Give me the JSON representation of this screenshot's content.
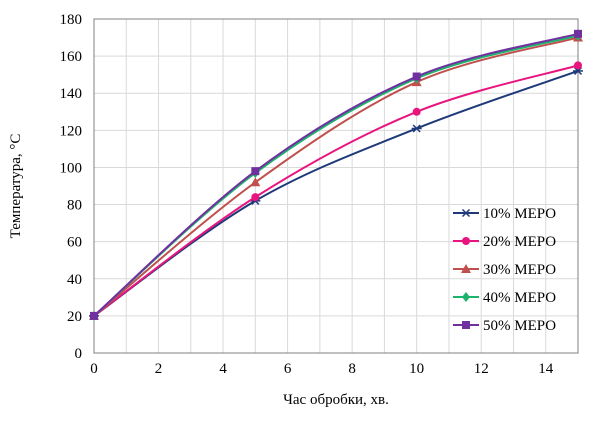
{
  "chart_data": {
    "type": "line",
    "title": "",
    "xlabel": "Час обробки, хв.",
    "ylabel": "Температура, °С",
    "x": [
      0,
      5,
      10,
      15
    ],
    "xlim": [
      0,
      15
    ],
    "ylim": [
      0,
      180
    ],
    "xticks": [
      0,
      2,
      4,
      6,
      8,
      10,
      12,
      14
    ],
    "yticks": [
      0,
      20,
      40,
      60,
      80,
      100,
      120,
      140,
      160,
      180
    ],
    "grid": true,
    "legend_position": "right",
    "series": [
      {
        "name": "10% МЕРО",
        "values": [
          20,
          82,
          121,
          152
        ],
        "color": "#1f3a7a",
        "marker": "star"
      },
      {
        "name": "20% МЕРО",
        "values": [
          20,
          84,
          130,
          155
        ],
        "color": "#e8157f",
        "marker": "circle"
      },
      {
        "name": "30% МЕРО",
        "values": [
          20,
          92,
          146,
          170
        ],
        "color": "#c0504d",
        "marker": "triangle"
      },
      {
        "name": "40% МЕРО",
        "values": [
          20,
          97,
          148,
          171
        ],
        "color": "#1db36b",
        "marker": "diamond"
      },
      {
        "name": "50% МЕРО",
        "values": [
          20,
          98,
          149,
          172
        ],
        "color": "#7030a0",
        "marker": "square"
      }
    ]
  }
}
